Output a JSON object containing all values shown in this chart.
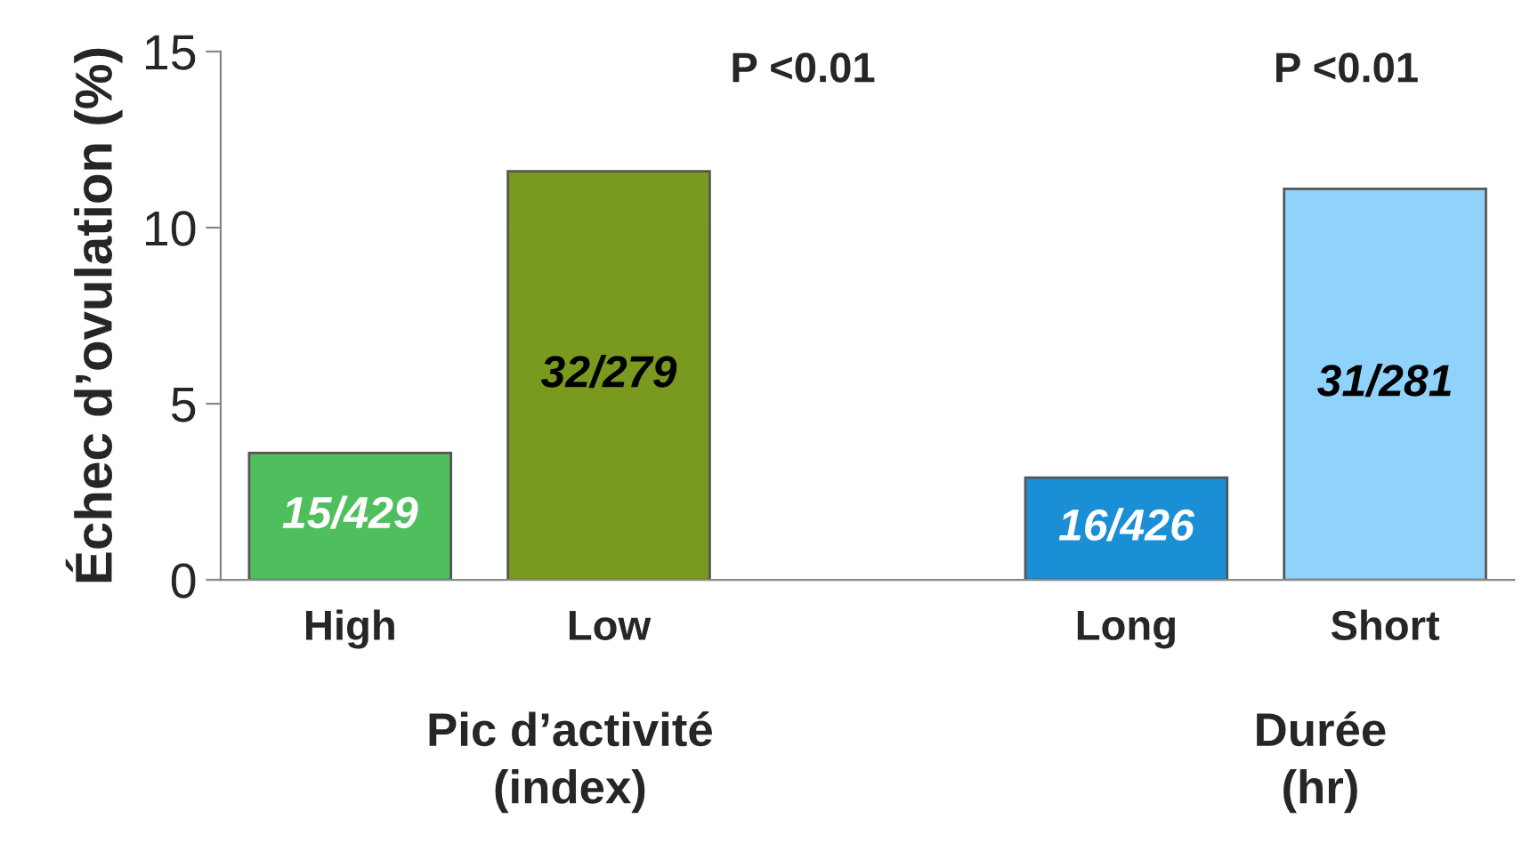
{
  "chart_data": {
    "type": "bar",
    "ylabel": "Échec d’ovulation (%)",
    "categories": [
      "High",
      "Low",
      null,
      "Long",
      "Short"
    ],
    "values": [
      3.6,
      11.6,
      null,
      2.9,
      11.1
    ],
    "colors": [
      "#4fbf5e",
      "#7a9a1f",
      "#ffffff",
      "#1a8fd6",
      "#8fd3fb"
    ],
    "value_labels": [
      "15/429",
      "32/279",
      null,
      "16/426",
      "31/281"
    ],
    "ylim": [
      0,
      15
    ],
    "yticks": [
      0,
      5,
      10,
      15
    ],
    "grid": false,
    "legend": false,
    "annotations": [
      "P <0.01",
      "P <0.01",
      "Pic d’activité\n(index)",
      "Durée\n(hr)"
    ]
  }
}
